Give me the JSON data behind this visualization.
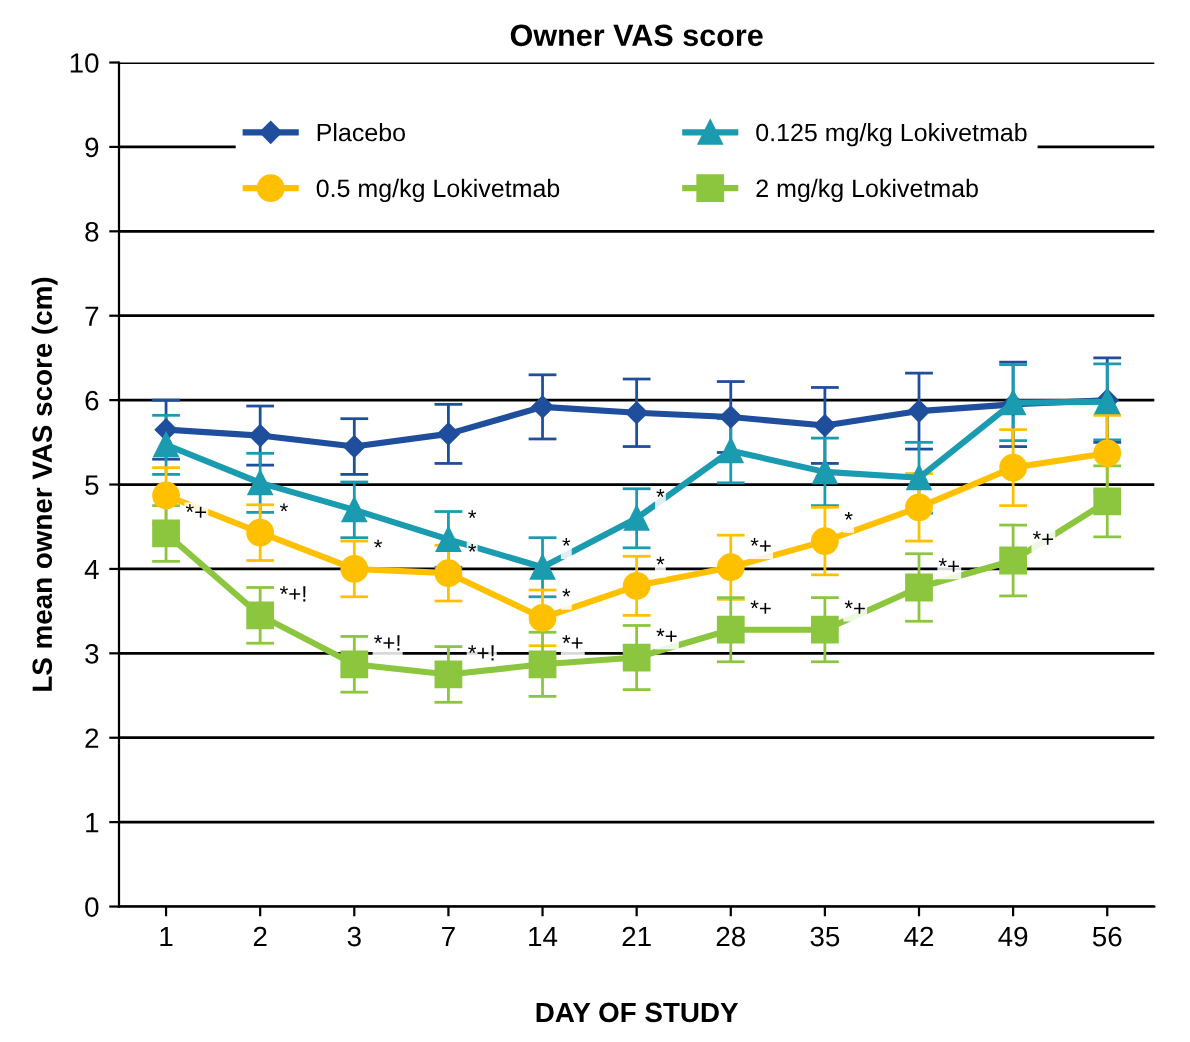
{
  "chart_data": {
    "type": "line",
    "title": "Owner VAS score",
    "xlabel": "DAY OF STUDY",
    "ylabel": "LS mean owner VAS score (cm)",
    "categories": [
      "1",
      "2",
      "3",
      "7",
      "14",
      "21",
      "28",
      "35",
      "42",
      "49",
      "56"
    ],
    "ylim": [
      0,
      10
    ],
    "yticks": [
      0,
      1,
      2,
      3,
      4,
      5,
      6,
      7,
      8,
      9,
      10
    ],
    "grid": "y",
    "legend": "top",
    "series": [
      {
        "name": "Placebo",
        "color": "#1f4e9c",
        "marker": "diamond",
        "values": [
          5.65,
          5.58,
          5.45,
          5.6,
          5.92,
          5.85,
          5.8,
          5.7,
          5.87,
          5.95,
          6.0
        ],
        "errors": [
          0.35,
          0.35,
          0.33,
          0.35,
          0.38,
          0.4,
          0.42,
          0.45,
          0.45,
          0.5,
          0.5
        ]
      },
      {
        "name": "0.125 mg/kg Lokivetmab",
        "color": "#1a9bb0",
        "marker": "triangle",
        "values": [
          5.47,
          5.02,
          4.7,
          4.35,
          4.02,
          4.6,
          5.4,
          5.15,
          5.08,
          5.97,
          5.98
        ],
        "errors": [
          0.35,
          0.35,
          0.33,
          0.33,
          0.35,
          0.35,
          0.38,
          0.4,
          0.42,
          0.45,
          0.45
        ]
      },
      {
        "name": "0.5 mg/kg Lokivetmab",
        "color": "#ffc000",
        "marker": "circle",
        "values": [
          4.87,
          4.43,
          4.0,
          3.95,
          3.42,
          3.8,
          4.02,
          4.33,
          4.73,
          5.2,
          5.37
        ],
        "errors": [
          0.33,
          0.33,
          0.33,
          0.33,
          0.33,
          0.35,
          0.38,
          0.4,
          0.4,
          0.45,
          0.45
        ]
      },
      {
        "name": "2 mg/kg Lokivetmab",
        "color": "#8cc63f",
        "marker": "square",
        "values": [
          4.42,
          3.45,
          2.87,
          2.75,
          2.87,
          2.95,
          3.28,
          3.28,
          3.78,
          4.1,
          4.8
        ],
        "errors": [
          0.33,
          0.33,
          0.33,
          0.33,
          0.38,
          0.38,
          0.38,
          0.38,
          0.4,
          0.42,
          0.42
        ]
      }
    ],
    "annotations": [
      {
        "text": "*",
        "x": "7",
        "y": 4.35
      },
      {
        "text": "*",
        "x": "14",
        "y": 4.02
      },
      {
        "text": "*",
        "x": "21",
        "y": 4.6
      },
      {
        "text": "*",
        "x": "2",
        "y": 4.43
      },
      {
        "text": "*",
        "x": "3",
        "y": 4.0
      },
      {
        "text": "*",
        "x": "7",
        "y": 3.95
      },
      {
        "text": "*",
        "x": "14",
        "y": 3.42
      },
      {
        "text": "*",
        "x": "21",
        "y": 3.8
      },
      {
        "text": "*+",
        "x": "28",
        "y": 4.02
      },
      {
        "text": "*",
        "x": "35",
        "y": 4.33
      },
      {
        "text": "*+",
        "x": "1",
        "y": 4.42
      },
      {
        "text": "*+!",
        "x": "2",
        "y": 3.45
      },
      {
        "text": "*+!",
        "x": "3",
        "y": 2.87
      },
      {
        "text": "*+!",
        "x": "7",
        "y": 2.75
      },
      {
        "text": "*+",
        "x": "14",
        "y": 2.87
      },
      {
        "text": "*+",
        "x": "21",
        "y": 2.95
      },
      {
        "text": "*+",
        "x": "28",
        "y": 3.28
      },
      {
        "text": "*+",
        "x": "35",
        "y": 3.28
      },
      {
        "text": "*+",
        "x": "42",
        "y": 3.78
      },
      {
        "text": "*+",
        "x": "49",
        "y": 4.1
      }
    ]
  }
}
